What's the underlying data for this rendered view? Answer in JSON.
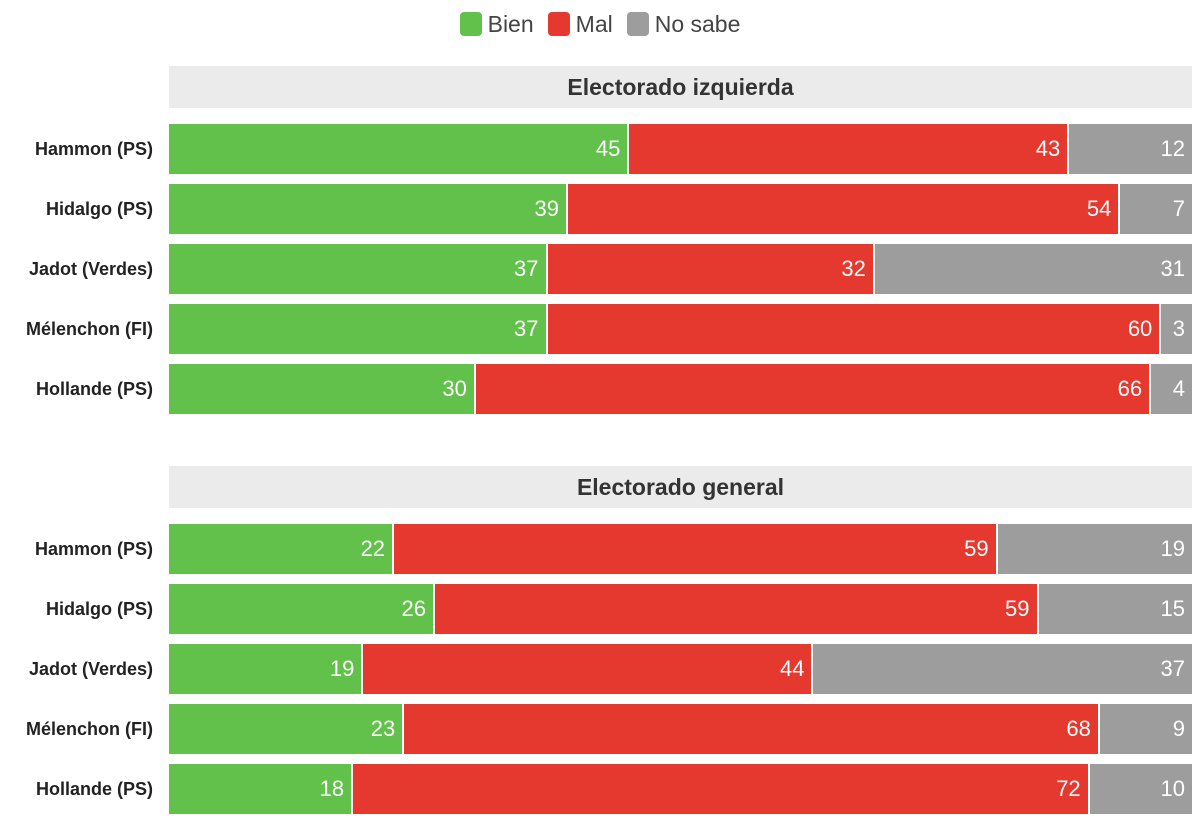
{
  "legend": [
    {
      "label": "Bien",
      "color": "#61c14a"
    },
    {
      "label": "Mal",
      "color": "#e5382f"
    },
    {
      "label": "No sabe",
      "color": "#9d9d9d"
    }
  ],
  "chart_data": {
    "type": "bar",
    "orientation": "horizontal",
    "stacked": true,
    "legend_position": "top-center",
    "panels": [
      {
        "title": "Electorado izquierda",
        "categories": [
          "Hammon (PS)",
          "Hidalgo (PS)",
          "Jadot (Verdes)",
          "Mélenchon (FI)",
          "Hollande (PS)"
        ],
        "series": [
          {
            "name": "Bien",
            "values": [
              45,
              39,
              37,
              37,
              30
            ]
          },
          {
            "name": "Mal",
            "values": [
              43,
              54,
              32,
              60,
              66
            ]
          },
          {
            "name": "No sabe",
            "values": [
              12,
              7,
              31,
              3,
              4
            ]
          }
        ]
      },
      {
        "title": "Electorado general",
        "categories": [
          "Hammon (PS)",
          "Hidalgo (PS)",
          "Jadot (Verdes)",
          "Mélenchon (FI)",
          "Hollande (PS)"
        ],
        "series": [
          {
            "name": "Bien",
            "values": [
              22,
              26,
              19,
              23,
              18
            ]
          },
          {
            "name": "Mal",
            "values": [
              59,
              59,
              44,
              68,
              72
            ]
          },
          {
            "name": "No sabe",
            "values": [
              19,
              15,
              37,
              9,
              10
            ]
          }
        ]
      }
    ]
  }
}
